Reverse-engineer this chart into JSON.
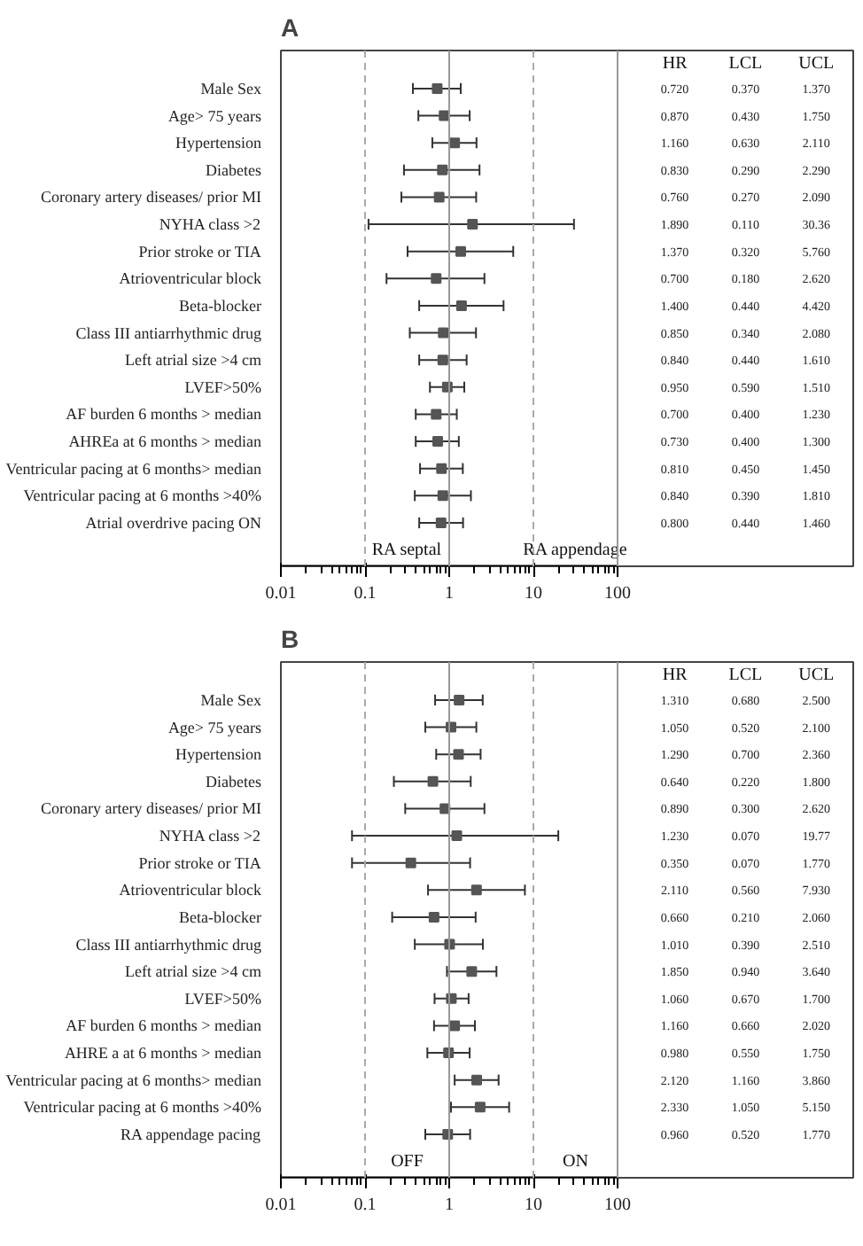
{
  "chart_data": [
    {
      "type": "scatter",
      "title": "A",
      "orientation": "horizontal",
      "log": "x",
      "marker": "square",
      "grid": false,
      "xlim": [
        0.01,
        100
      ],
      "xticks": [
        0.01,
        0.1,
        1,
        10,
        100
      ],
      "categories": [
        "Male Sex",
        "Age> 75 years",
        "Hypertension",
        "Diabetes",
        "Coronary artery diseases/ prior MI",
        "NYHA class >2",
        "Prior stroke or TIA",
        "Atrioventricular block",
        "Beta-blocker",
        "Class III antiarrhythmic drug",
        "Left atrial size >4 cm",
        "LVEF>50%",
        "AF burden 6 months > median",
        "AHREa at 6 months > median",
        "Ventricular pacing at 6 months> median",
        "Ventricular pacing at 6 months >40%",
        "Atrial overdrive pacing ON"
      ],
      "series": [
        {
          "color": "#555555",
          "values": [
            0.72,
            0.87,
            1.16,
            0.83,
            0.76,
            1.89,
            1.37,
            0.7,
            1.4,
            0.85,
            0.84,
            0.95,
            0.7,
            0.73,
            0.81,
            0.84,
            0.8
          ],
          "errors": [
            [
              0.37,
              1.37
            ],
            [
              0.43,
              1.75
            ],
            [
              0.63,
              2.11
            ],
            [
              0.29,
              2.29
            ],
            [
              0.27,
              2.09
            ],
            [
              0.11,
              30.36
            ],
            [
              0.32,
              5.76
            ],
            [
              0.18,
              2.62
            ],
            [
              0.44,
              4.42
            ],
            [
              0.34,
              2.08
            ],
            [
              0.44,
              1.61
            ],
            [
              0.59,
              1.51
            ],
            [
              0.4,
              1.23
            ],
            [
              0.4,
              1.3
            ],
            [
              0.45,
              1.45
            ],
            [
              0.39,
              1.81
            ],
            [
              0.44,
              1.46
            ]
          ],
          "value_labels": [
            [
              "0.720",
              "0.370",
              "1.370"
            ],
            [
              "0.870",
              "0.430",
              "1.750"
            ],
            [
              "1.160",
              "0.630",
              "2.110"
            ],
            [
              "0.830",
              "0.290",
              "2.290"
            ],
            [
              "0.760",
              "0.270",
              "2.090"
            ],
            [
              "1.890",
              "0.110",
              "30.36"
            ],
            [
              "1.370",
              "0.320",
              "5.760"
            ],
            [
              "0.700",
              "0.180",
              "2.620"
            ],
            [
              "1.400",
              "0.440",
              "4.420"
            ],
            [
              "0.850",
              "0.340",
              "2.080"
            ],
            [
              "0.840",
              "0.440",
              "1.610"
            ],
            [
              "0.950",
              "0.590",
              "1.510"
            ],
            [
              "0.700",
              "0.400",
              "1.230"
            ],
            [
              "0.730",
              "0.400",
              "1.300"
            ],
            [
              "0.810",
              "0.450",
              "1.450"
            ],
            [
              "0.840",
              "0.390",
              "1.810"
            ],
            [
              "0.800",
              "0.440",
              "1.460"
            ]
          ]
        }
      ],
      "ref_lines": [
        {
          "axis": "x",
          "value": 0.1,
          "line_style": "dashed",
          "color": "#aaaaaa"
        },
        {
          "axis": "x",
          "value": 1,
          "line_style": "solid",
          "color": "#999999"
        },
        {
          "axis": "x",
          "value": 10,
          "line_style": "dashed",
          "color": "#aaaaaa"
        },
        {
          "axis": "x",
          "value": 100,
          "line_style": "solid",
          "color": "#999999"
        }
      ],
      "annotations": [
        "HR",
        "LCL",
        "UCL",
        "RA septal",
        "RA appendage"
      ]
    },
    {
      "type": "scatter",
      "title": "B",
      "orientation": "horizontal",
      "log": "x",
      "marker": "square",
      "grid": false,
      "xlim": [
        0.01,
        100
      ],
      "xticks": [
        0.01,
        0.1,
        1,
        10,
        100
      ],
      "categories": [
        "Male Sex",
        "Age> 75 years",
        "Hypertension",
        "Diabetes",
        "Coronary artery diseases/ prior MI",
        "NYHA class >2",
        "Prior stroke or TIA",
        "Atrioventricular block",
        "Beta-blocker",
        "Class III antiarrhythmic drug",
        "Left atrial size >4 cm",
        "LVEF>50%",
        "AF burden 6 months > median",
        "AHRE a at 6 months > median",
        "Ventricular pacing at 6 months> median",
        "Ventricular pacing at 6 months >40%",
        "RA appendage pacing"
      ],
      "series": [
        {
          "color": "#555555",
          "values": [
            1.31,
            1.05,
            1.29,
            0.64,
            0.89,
            1.23,
            0.35,
            2.11,
            0.66,
            1.01,
            1.85,
            1.06,
            1.16,
            0.98,
            2.12,
            2.33,
            0.96
          ],
          "errors": [
            [
              0.68,
              2.5
            ],
            [
              0.52,
              2.1
            ],
            [
              0.7,
              2.36
            ],
            [
              0.22,
              1.8
            ],
            [
              0.3,
              2.62
            ],
            [
              0.07,
              19.77
            ],
            [
              0.07,
              1.77
            ],
            [
              0.56,
              7.93
            ],
            [
              0.21,
              2.06
            ],
            [
              0.39,
              2.51
            ],
            [
              0.94,
              3.64
            ],
            [
              0.67,
              1.7
            ],
            [
              0.66,
              2.02
            ],
            [
              0.55,
              1.75
            ],
            [
              1.16,
              3.86
            ],
            [
              1.05,
              5.15
            ],
            [
              0.52,
              1.77
            ]
          ],
          "value_labels": [
            [
              "1.310",
              "0.680",
              "2.500"
            ],
            [
              "1.050",
              "0.520",
              "2.100"
            ],
            [
              "1.290",
              "0.700",
              "2.360"
            ],
            [
              "0.640",
              "0.220",
              "1.800"
            ],
            [
              "0.890",
              "0.300",
              "2.620"
            ],
            [
              "1.230",
              "0.070",
              "19.77"
            ],
            [
              "0.350",
              "0.070",
              "1.770"
            ],
            [
              "2.110",
              "0.560",
              "7.930"
            ],
            [
              "0.660",
              "0.210",
              "2.060"
            ],
            [
              "1.010",
              "0.390",
              "2.510"
            ],
            [
              "1.850",
              "0.940",
              "3.640"
            ],
            [
              "1.060",
              "0.670",
              "1.700"
            ],
            [
              "1.160",
              "0.660",
              "2.020"
            ],
            [
              "0.980",
              "0.550",
              "1.750"
            ],
            [
              "2.120",
              "1.160",
              "3.860"
            ],
            [
              "2.330",
              "1.050",
              "5.150"
            ],
            [
              "0.960",
              "0.520",
              "1.770"
            ]
          ]
        }
      ],
      "ref_lines": [
        {
          "axis": "x",
          "value": 0.1,
          "line_style": "dashed",
          "color": "#aaaaaa"
        },
        {
          "axis": "x",
          "value": 1,
          "line_style": "solid",
          "color": "#999999"
        },
        {
          "axis": "x",
          "value": 10,
          "line_style": "dashed",
          "color": "#aaaaaa"
        },
        {
          "axis": "x",
          "value": 100,
          "line_style": "solid",
          "color": "#999999"
        }
      ],
      "annotations": [
        "HR",
        "LCL",
        "UCL",
        "OFF",
        "ON"
      ]
    }
  ]
}
